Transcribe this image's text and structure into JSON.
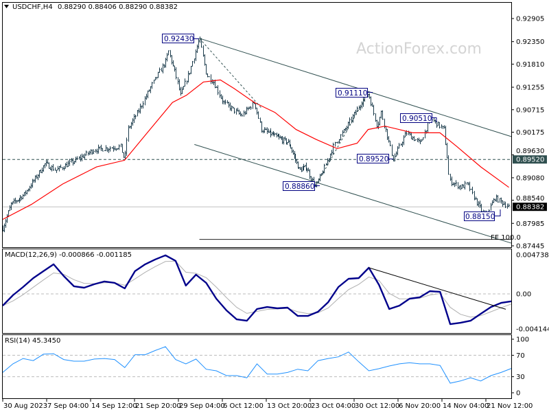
{
  "header": {
    "symbol": "USDCHF,H4",
    "ohlc": "0.88290 0.88406 0.88290 0.88382",
    "menu_icon": "triangle-down-icon"
  },
  "watermark": "ActionForex.com",
  "colors": {
    "bars": "#1b3b4b",
    "ma": "#ff0000",
    "macd": "#00008b",
    "signal": "#b0b0b0",
    "rsi": "#1e90ff",
    "annotation": "#000080"
  },
  "chart_data": {
    "type": "ohlc",
    "x_ticks": [
      "30 Aug 2023",
      "7 Sep 04:00",
      "14 Sep 12:00",
      "21 Sep 20:00",
      "29 Sep 04:00",
      "6 Oct 12:00",
      "13 Oct 20:00",
      "23 Oct 04:00",
      "30 Oct 12:00",
      "6 Nov 20:00",
      "14 Nov 04:00",
      "21 Nov 12:00"
    ],
    "price_panel": {
      "y_ticks": [
        "0.92905",
        "0.92350",
        "0.91810",
        "0.91255",
        "0.90715",
        "0.90175",
        "0.89630",
        "0.89080",
        "0.88540",
        "0.87985",
        "0.87445"
      ],
      "ylim": [
        0.87445,
        0.92905
      ],
      "last_price": "0.88382",
      "level_marker": "0.89520",
      "close_path": [
        [
          "2023-08-30 00:00",
          0.8787
        ],
        [
          "2023-08-31 12:00",
          0.8844
        ],
        [
          "2023-09-03 00:00",
          0.8868
        ],
        [
          "2023-09-05 00:00",
          0.8906
        ],
        [
          "2023-09-06 20:00",
          0.8942
        ],
        [
          "2023-09-08 16:00",
          0.8926
        ],
        [
          "2023-09-12 00:00",
          0.895
        ],
        [
          "2023-09-15 00:00",
          0.8975
        ],
        [
          "2023-09-19 12:00",
          0.8983
        ],
        [
          "2023-09-20 04:00",
          0.895
        ],
        [
          "2023-09-20 16:00",
          0.9024
        ],
        [
          "2023-09-22 08:00",
          0.9065
        ],
        [
          "2023-09-24 16:00",
          0.913
        ],
        [
          "2023-09-27 00:00",
          0.9187
        ],
        [
          "2023-09-27 12:00",
          0.9212
        ],
        [
          "2023-09-28 16:00",
          0.9155
        ],
        [
          "2023-09-29 12:00",
          0.9106
        ],
        [
          "2023-10-01 00:00",
          0.9163
        ],
        [
          "2023-10-02 16:00",
          0.9243
        ],
        [
          "2023-10-03 20:00",
          0.9155
        ],
        [
          "2023-10-05 00:00",
          0.9138
        ],
        [
          "2023-10-06 16:00",
          0.9089
        ],
        [
          "2023-10-09 16:00",
          0.9057
        ],
        [
          "2023-10-11 20:00",
          0.9089
        ],
        [
          "2023-10-13 00:00",
          0.9024
        ],
        [
          "2023-10-15 16:00",
          0.9008
        ],
        [
          "2023-10-18 16:00",
          0.8991
        ],
        [
          "2023-10-20 20:00",
          0.8926
        ],
        [
          "2023-10-22 08:00",
          0.8934
        ],
        [
          "2023-10-24 00:00",
          0.8886
        ],
        [
          "2023-10-25 08:00",
          0.8926
        ],
        [
          "2023-10-27 00:00",
          0.8983
        ],
        [
          "2023-10-29 08:00",
          0.9032
        ],
        [
          "2023-10-31 16:00",
          0.9089
        ],
        [
          "2023-11-01 20:00",
          0.9111
        ],
        [
          "2023-11-03 08:00",
          0.9032
        ],
        [
          "2023-11-04 00:00",
          0.9065
        ],
        [
          "2023-11-06 00:00",
          0.8952
        ],
        [
          "2023-11-08 04:00",
          0.9016
        ],
        [
          "2023-11-10 12:00",
          0.8991
        ],
        [
          "2023-11-12 04:00",
          0.9051
        ],
        [
          "2023-11-14 12:00",
          0.9024
        ],
        [
          "2023-11-15 00:00",
          0.8958
        ],
        [
          "2023-11-15 08:00",
          0.8901
        ],
        [
          "2023-11-17 08:00",
          0.8885
        ],
        [
          "2023-11-18 08:00",
          0.8893
        ],
        [
          "2023-11-20 04:00",
          0.8844
        ],
        [
          "2023-11-21 08:00",
          0.8815
        ],
        [
          "2023-11-23 00:00",
          0.886
        ],
        [
          "2023-11-25 08:00",
          0.88382
        ]
      ],
      "moving_average": [
        [
          "2023-08-30 00:00",
          0.8808
        ],
        [
          "2023-09-04 08:00",
          0.8844
        ],
        [
          "2023-09-09 20:00",
          0.8893
        ],
        [
          "2023-09-15 12:00",
          0.8934
        ],
        [
          "2023-09-20 04:00",
          0.895
        ],
        [
          "2023-09-23 12:00",
          0.9008
        ],
        [
          "2023-09-28 04:00",
          0.9089
        ],
        [
          "2023-09-30 12:00",
          0.9106
        ],
        [
          "2023-10-03 08:00",
          0.9138
        ],
        [
          "2023-10-06 04:00",
          0.9143
        ],
        [
          "2023-10-08 12:00",
          0.9122
        ],
        [
          "2023-10-11 20:00",
          0.9089
        ],
        [
          "2023-10-15 16:00",
          0.9065
        ],
        [
          "2023-10-20 04:00",
          0.9024
        ],
        [
          "2023-10-24 04:00",
          0.9
        ],
        [
          "2023-10-27 16:00",
          0.8978
        ],
        [
          "2023-10-31 00:00",
          0.8991
        ],
        [
          "2023-11-01 20:00",
          0.9024
        ],
        [
          "2023-11-04 16:00",
          0.9032
        ],
        [
          "2023-11-09 08:00",
          0.9016
        ],
        [
          "2023-11-13 20:00",
          0.9016
        ],
        [
          "2023-11-16 16:00",
          0.8983
        ],
        [
          "2023-11-20 16:00",
          0.8934
        ],
        [
          "2023-11-25 08:00",
          0.8885
        ]
      ],
      "trendlines": [
        {
          "kind": "channel-upper",
          "from": [
            "2023-10-02 16:00",
            0.9243
          ],
          "to": [
            "2023-11-25 20:00",
            0.9007
          ],
          "style": "solid"
        },
        {
          "kind": "channel-lower",
          "from": [
            "2023-10-01 20:00",
            0.8988
          ],
          "to": [
            "2023-11-25 20:00",
            0.8751
          ],
          "style": "solid"
        },
        {
          "kind": "fib-projection",
          "from": [
            "2023-10-02 16:00",
            0.876
          ],
          "to": [
            "2023-11-25 20:00",
            0.876
          ],
          "style": "solid",
          "label": "FE 100.0"
        },
        {
          "kind": "leg-1",
          "from": [
            "2023-10-02 16:00",
            0.9243
          ],
          "to": [
            "2023-10-13 00:00",
            0.9076
          ],
          "style": "dashed"
        },
        {
          "kind": "leg-2",
          "from": [
            "2023-10-24 00:00",
            0.8886
          ],
          "to": [
            "2023-11-01 20:00",
            0.9111
          ],
          "style": "dashed"
        }
      ],
      "annotations": [
        "0.92430",
        "0.91110",
        "0.90510",
        "0.89520",
        "0.88860",
        "0.88150"
      ]
    },
    "macd_panel": {
      "label": "MACD(12,26,9) -0.000866 -0.001185",
      "y_ticks": [
        "0.004738",
        "0.00",
        "-0.004144"
      ],
      "ylim": [
        -0.004144,
        0.004738
      ],
      "main": [
        -0.00137,
        -0.00016,
        0.0008,
        0.00185,
        0.00266,
        0.00346,
        0.00209,
        0.00089,
        0.00072,
        0.00113,
        0.00145,
        0.00129,
        0.00064,
        0.00266,
        0.00346,
        0.00403,
        0.00451,
        0.00386,
        0.00097,
        0.00225,
        0.00129,
        -0.00056,
        -0.00193,
        -0.00298,
        -0.00314,
        -0.00177,
        -0.00153,
        -0.00169,
        -0.00161,
        -0.00258,
        -0.00258,
        -0.00209,
        -0.00097,
        0.0008,
        0.00177,
        0.00185,
        0.00306,
        0.00105,
        -0.00177,
        -0.00137,
        -0.00056,
        -0.0004,
        0.00032,
        0.00024,
        -0.00354,
        -0.00338,
        -0.00314,
        -0.00233,
        -0.00153,
        -0.00105,
        -0.000866
      ],
      "signal_last": -0.001185,
      "trendline": {
        "from_index": 36,
        "from_value": 0.00306,
        "to_index": 50,
        "to_value": -0.0018
      }
    },
    "rsi_panel": {
      "label": "RSI(14) 45.3450",
      "y_ticks": [
        "100",
        "70",
        "30",
        "0"
      ],
      "levels": [
        70,
        30
      ],
      "ylim": [
        0,
        100
      ],
      "values": [
        38,
        54,
        64,
        60,
        72,
        73,
        62,
        59,
        59,
        63,
        64,
        62,
        47,
        71,
        71,
        79,
        86,
        62,
        54,
        63,
        44,
        41,
        32,
        32,
        28,
        54,
        35,
        35,
        38,
        44,
        41,
        60,
        64,
        67,
        76,
        58,
        41,
        45,
        50,
        54,
        56,
        54,
        54,
        51,
        18,
        22,
        28,
        22,
        32,
        38,
        45.345
      ]
    }
  }
}
